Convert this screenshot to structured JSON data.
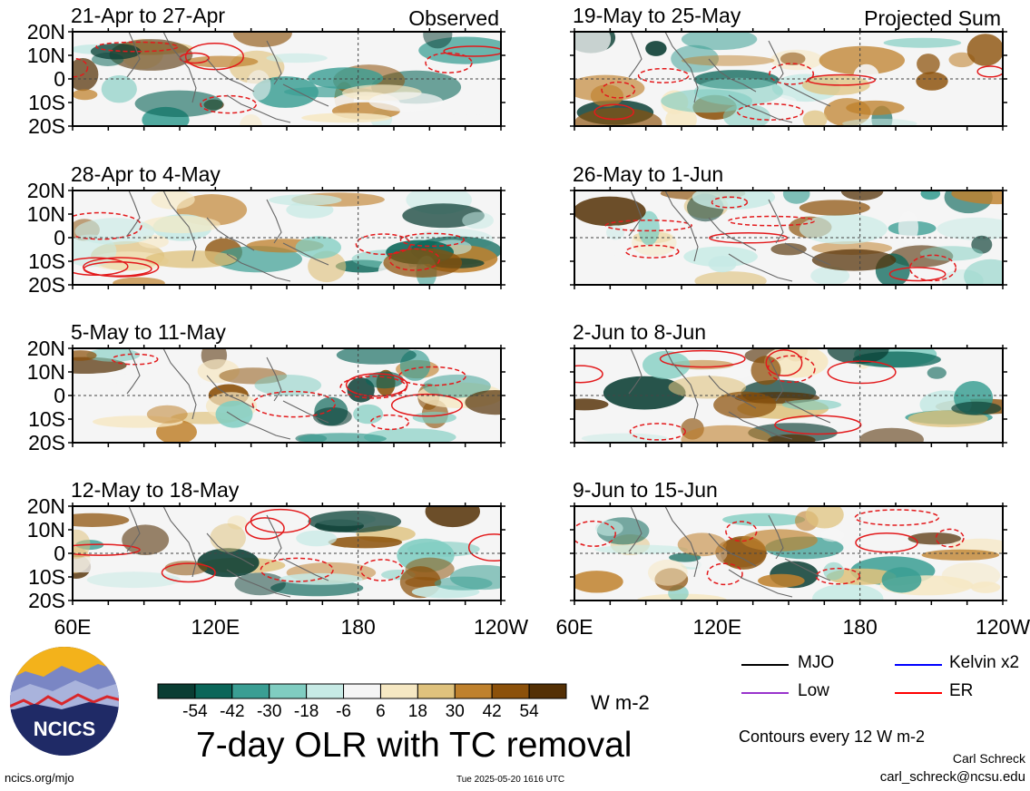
{
  "panels": [
    {
      "title": "21-Apr to 27-Apr",
      "corner_label": "Observed",
      "seed": 3
    },
    {
      "title": "19-May to 25-May",
      "corner_label": "Projected Sum",
      "seed": 11
    },
    {
      "title": "28-Apr to 4-May",
      "corner_label": "",
      "seed": 5
    },
    {
      "title": "26-May to 1-Jun",
      "corner_label": "",
      "seed": 17
    },
    {
      "title": "5-May to 11-May",
      "corner_label": "",
      "seed": 23
    },
    {
      "title": "2-Jun to 8-Jun",
      "corner_label": "",
      "seed": 29
    },
    {
      "title": "12-May to 18-May",
      "corner_label": "",
      "seed": 31
    },
    {
      "title": "9-Jun to 15-Jun",
      "corner_label": "",
      "seed": 37
    }
  ],
  "lat_labels": [
    "20N",
    "10N",
    "0",
    "10S",
    "20S"
  ],
  "lon_labels_left": [
    "60E",
    "120E",
    "180",
    "120W"
  ],
  "lon_labels_right": [
    "60E",
    "120E",
    "180",
    "120W"
  ],
  "colorbar": {
    "colors": [
      "#0a3d33",
      "#0b6659",
      "#3a9e93",
      "#80cdc1",
      "#c7eae5",
      "#f5f5f5",
      "#f6e8c3",
      "#dfc27d",
      "#bf812d",
      "#8c510a",
      "#543005"
    ],
    "tick_labels": [
      "-54",
      "-42",
      "-30",
      "-18",
      "-6",
      "6",
      "18",
      "30",
      "42",
      "54"
    ],
    "units": "W m-2"
  },
  "main_title": "7-day OLR with TC removal",
  "legend": [
    {
      "label": "MJO",
      "color": "#000000"
    },
    {
      "label": "Kelvin x2",
      "color": "#0000ff"
    },
    {
      "label": "Low",
      "color": "#9933cc"
    },
    {
      "label": "ER",
      "color": "#ff0000"
    }
  ],
  "contour_note": "Contours every 12 W m-2",
  "logo_text": "NCICS",
  "footer": {
    "url": "ncics.org/mjo",
    "timestamp": "Tue 2025-05-20 1616 UTC",
    "author": "Carl Schreck",
    "email": "carl_schreck@ncsu.edu"
  }
}
